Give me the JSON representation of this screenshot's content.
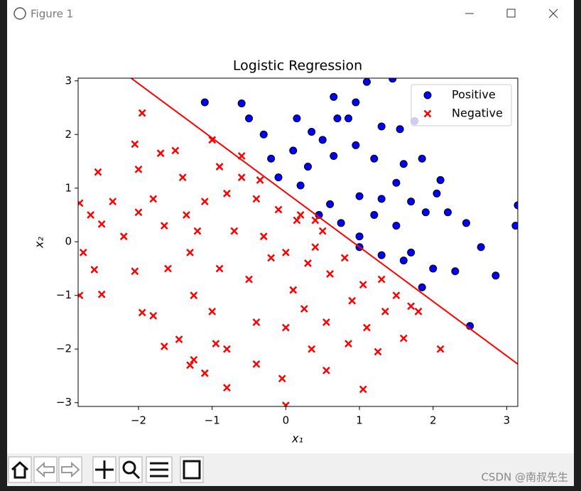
{
  "window": {
    "title": "Figure 1"
  },
  "watermark": "CSDN @南叔先生",
  "chart_data": {
    "type": "scatter",
    "title": "Logistic Regression",
    "xlabel": "x₁",
    "ylabel": "x₂",
    "xlim": [
      -2.82,
      3.15
    ],
    "ylim": [
      -3.07,
      3.05
    ],
    "xticks": [
      {
        "value": -2,
        "label": "−2"
      },
      {
        "value": -1,
        "label": "−1"
      },
      0,
      1,
      2,
      3
    ],
    "yticks": [
      {
        "value": -3,
        "label": "−3"
      },
      {
        "value": -2,
        "label": "−2"
      },
      {
        "value": -1,
        "label": "−1"
      },
      0,
      1,
      2,
      3
    ],
    "legend": "upper right",
    "series": [
      {
        "name": "Positive",
        "color": "#0000ff",
        "marker": "o",
        "x": [
          0.15,
          0.35,
          0.65,
          0.95,
          1.1,
          1.45,
          -1.1,
          -0.6,
          -0.5,
          -0.3,
          0.1,
          0.3,
          0.5,
          0.7,
          0.85,
          1.3,
          1.55,
          1.75,
          0.65,
          0.95,
          1.2,
          1.5,
          1.6,
          1.85,
          2.1,
          2.05,
          1.7,
          1.3,
          1,
          0.6,
          0.45,
          0.75,
          1,
          1.2,
          1.5,
          1.9,
          2.2,
          2.45,
          1.7,
          2,
          2.3,
          2.65,
          2.85,
          2.5,
          1,
          1.3,
          -0.1,
          -0.2,
          3.12,
          3.15,
          0.2,
          1.6,
          1.85
        ],
        "values": [
          2.3,
          2.05,
          2.7,
          2.6,
          2.98,
          3.04,
          2.6,
          2.58,
          2.3,
          2,
          1.7,
          1.4,
          1.9,
          2.3,
          2.3,
          2.15,
          2.1,
          2.25,
          1.6,
          1.8,
          1.55,
          1.1,
          1.45,
          1.55,
          1.15,
          0.9,
          0.75,
          0.8,
          0.85,
          0.7,
          0.5,
          0.35,
          0.1,
          0.5,
          0.3,
          0.55,
          0.55,
          0.35,
          -0.2,
          -0.5,
          -0.55,
          -0.1,
          -0.63,
          -1.57,
          -0.1,
          -0.25,
          1.2,
          1.55,
          0.3,
          0.68,
          1.05,
          -0.35,
          -0.85
        ]
      },
      {
        "name": "Negative",
        "color": "#ff0000",
        "marker": "x",
        "x": [
          -2.8,
          -2.75,
          -2.8,
          -2.55,
          -2.5,
          -2.65,
          -2.6,
          -2.5,
          -2.35,
          -2.2,
          -2,
          -2.05,
          -1.95,
          -2,
          -2.05,
          -1.95,
          -1.8,
          -1.8,
          -1.65,
          -1.6,
          -1.65,
          -1.5,
          -1.4,
          -1.35,
          -1.3,
          -1.25,
          -1.45,
          -1.3,
          -1.1,
          -1,
          -0.9,
          -0.8,
          -0.7,
          -0.9,
          -1,
          -0.8,
          -0.8,
          -0.6,
          -0.4,
          -0.3,
          -0.5,
          -0.4,
          -0.4,
          -0.1,
          0,
          0.1,
          0,
          -0.05,
          0,
          0.2,
          0.3,
          0.25,
          0.35,
          0.5,
          0.6,
          0.55,
          0.55,
          0.8,
          0.9,
          0.85,
          1.05,
          1.1,
          1.05,
          1.3,
          1.35,
          1.25,
          1.5,
          1.7,
          1.8,
          1.6,
          2.1,
          -0.35,
          -0.6,
          -1.2,
          -0.2,
          0.4,
          -1.7,
          -1.1,
          0.15,
          0.4,
          -0.95,
          -1.25
        ],
        "values": [
          0.72,
          -0.2,
          -1,
          1.3,
          0.33,
          0.5,
          -0.52,
          -0.98,
          0.75,
          0.1,
          0.55,
          -0.55,
          2.4,
          1.35,
          1.82,
          -1.32,
          -1.38,
          0.8,
          0.3,
          -0.5,
          -1.95,
          1.7,
          1.2,
          0.5,
          -0.2,
          -1,
          -1.82,
          -2.3,
          -2.45,
          1.9,
          1.4,
          0.9,
          0.2,
          -0.5,
          -1.3,
          -2,
          -2.72,
          1.6,
          0.8,
          0.1,
          -0.7,
          -1.5,
          -2.28,
          0.6,
          -0.2,
          -0.9,
          -1.6,
          -2.55,
          -3.05,
          0.5,
          -0.4,
          -1.25,
          -2,
          0.2,
          -0.6,
          -1.5,
          -2.4,
          -0.3,
          -1.1,
          -1.9,
          -0.8,
          -1.6,
          -2.75,
          -0.7,
          -1.3,
          -2.05,
          -1,
          -1.2,
          -1.3,
          -1.8,
          -2,
          1.15,
          1.2,
          0.2,
          -0.3,
          -0.1,
          1.65,
          0.75,
          0.4,
          0.4,
          -1.9,
          -2.2
        ]
      }
    ],
    "boundary": {
      "color": "#ff0000",
      "x": [
        -2.13,
        3.15
      ],
      "values": [
        3.08,
        -2.28
      ]
    }
  }
}
